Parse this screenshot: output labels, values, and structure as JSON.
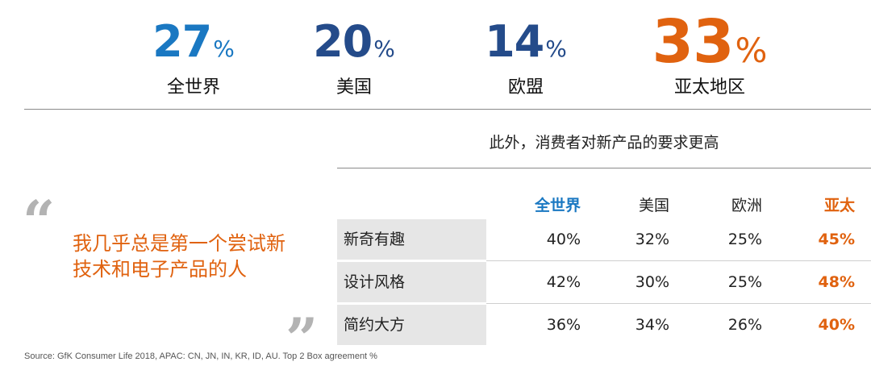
{
  "colors": {
    "blue_bright": "#1a78c2",
    "blue_dark": "#244b8a",
    "orange": "#e0620f",
    "gray_quote": "#b3b3b3",
    "row_label_bg": "#e6e6e6"
  },
  "stats": [
    {
      "value": "27",
      "unit": "%",
      "label": "全世界",
      "color": "#1a78c2"
    },
    {
      "value": "20",
      "unit": "%",
      "label": "美国",
      "color": "#244b8a"
    },
    {
      "value": "14",
      "unit": "%",
      "label": "欧盟",
      "color": "#244b8a"
    },
    {
      "value": "33",
      "unit": "%",
      "label": "亚太地区",
      "color": "#e0620f"
    }
  ],
  "table": {
    "title": "此外，消费者对新产品的要求更高",
    "headers": [
      "全世界",
      "美国",
      "欧洲",
      "亚太"
    ],
    "header_colors": [
      "#1a78c2",
      "#222222",
      "#222222",
      "#e0620f"
    ],
    "rows": [
      {
        "label": "新奇有趣",
        "values": [
          "40%",
          "32%",
          "25%",
          "45%"
        ]
      },
      {
        "label": "设计风格",
        "values": [
          "42%",
          "30%",
          "25%",
          "48%"
        ]
      },
      {
        "label": "简约大方",
        "values": [
          "36%",
          "34%",
          "26%",
          "40%"
        ]
      }
    ]
  },
  "quote": {
    "open_mark": "“",
    "close_mark": "”",
    "text": "我几乎总是第一个尝试新技术和电子产品的人"
  },
  "source": "Source: GfK Consumer Life 2018, APAC: CN, JN, IN, KR, ID, AU. Top 2 Box agreement %"
}
